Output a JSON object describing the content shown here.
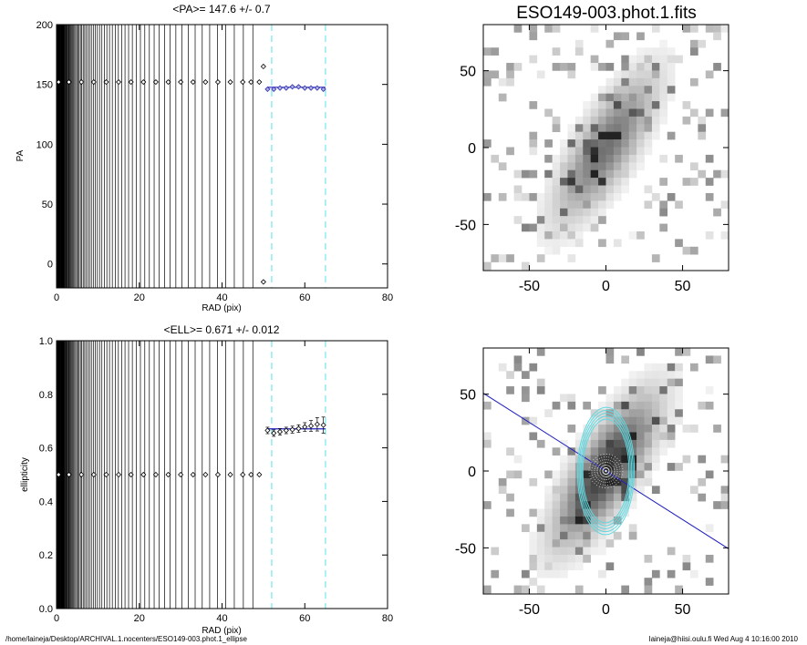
{
  "footer": {
    "path": "/home/laineja/Desktop/ARCHIVAL.1.nocenters/ESO149-003.phot.1_ellipse",
    "user_date": "laineja@hiisi.oulu.fi  Wed Aug  4 10:16:00 2010"
  },
  "colors": {
    "fit_line": "#2020c0",
    "fit_markers": "#3030b0",
    "range_lines": "#7fe8f0",
    "ellipses": "#60d8e0",
    "major_axis": "#2020c0"
  },
  "chart_data": [
    {
      "type": "scatter",
      "id": "pa_profile",
      "title": "<PA>= 147.6 +/-   0.7",
      "xlabel": "RAD (pix)",
      "ylabel": "PA",
      "xlim": [
        0,
        80
      ],
      "ylim": [
        -20,
        200
      ],
      "xticks": [
        0,
        20,
        40,
        60,
        80
      ],
      "yticks": [
        0,
        50,
        100,
        150,
        200
      ],
      "grid": false,
      "dense_vertical_lines_x_max": 49,
      "points": [
        {
          "x": 0.5,
          "y": 152
        },
        {
          "x": 3,
          "y": 152
        },
        {
          "x": 6,
          "y": 152
        },
        {
          "x": 9,
          "y": 152
        },
        {
          "x": 12,
          "y": 152
        },
        {
          "x": 15,
          "y": 152
        },
        {
          "x": 18,
          "y": 152
        },
        {
          "x": 21,
          "y": 152
        },
        {
          "x": 24,
          "y": 152
        },
        {
          "x": 27,
          "y": 152
        },
        {
          "x": 30,
          "y": 152
        },
        {
          "x": 33,
          "y": 152
        },
        {
          "x": 36,
          "y": 152
        },
        {
          "x": 39,
          "y": 152
        },
        {
          "x": 42,
          "y": 152
        },
        {
          "x": 45,
          "y": 152
        },
        {
          "x": 47,
          "y": 152
        },
        {
          "x": 49,
          "y": 152
        },
        {
          "x": 50,
          "y": 165
        },
        {
          "x": 50,
          "y": -15
        }
      ],
      "fit_points": [
        {
          "x": 51,
          "y": 146
        },
        {
          "x": 52.5,
          "y": 146
        },
        {
          "x": 54,
          "y": 147
        },
        {
          "x": 55.5,
          "y": 147
        },
        {
          "x": 57,
          "y": 148
        },
        {
          "x": 58.5,
          "y": 148
        },
        {
          "x": 60,
          "y": 147
        },
        {
          "x": 61.5,
          "y": 147
        },
        {
          "x": 63,
          "y": 147
        },
        {
          "x": 64.5,
          "y": 146
        }
      ],
      "fit_value": 147.6,
      "fit_range": [
        51,
        65
      ],
      "range_markers_x": [
        52,
        65
      ]
    },
    {
      "type": "scatter",
      "id": "ellipticity_profile",
      "title": "<ELL>= 0.671 +/-  0.012",
      "xlabel": "RAD (pix)",
      "ylabel": "ellipticity",
      "xlim": [
        0,
        80
      ],
      "ylim": [
        0,
        1
      ],
      "xticks": [
        0,
        20,
        40,
        60,
        80
      ],
      "yticks": [
        0.0,
        0.2,
        0.4,
        0.6,
        0.8,
        1.0
      ],
      "ytick_labels": [
        "0.0",
        "0.2",
        "0.4",
        "0.6",
        "0.8",
        "1.0"
      ],
      "grid": false,
      "dense_vertical_lines_x_max": 49,
      "points": [
        {
          "x": 0.5,
          "y": 0.5
        },
        {
          "x": 3,
          "y": 0.5
        },
        {
          "x": 6,
          "y": 0.5
        },
        {
          "x": 9,
          "y": 0.5
        },
        {
          "x": 12,
          "y": 0.5
        },
        {
          "x": 15,
          "y": 0.5
        },
        {
          "x": 18,
          "y": 0.5
        },
        {
          "x": 21,
          "y": 0.5
        },
        {
          "x": 24,
          "y": 0.5
        },
        {
          "x": 27,
          "y": 0.5
        },
        {
          "x": 30,
          "y": 0.5
        },
        {
          "x": 33,
          "y": 0.5
        },
        {
          "x": 36,
          "y": 0.5
        },
        {
          "x": 39,
          "y": 0.5
        },
        {
          "x": 42,
          "y": 0.5
        },
        {
          "x": 45,
          "y": 0.5
        },
        {
          "x": 47,
          "y": 0.5
        },
        {
          "x": 49,
          "y": 0.5
        }
      ],
      "fit_points": [
        {
          "x": 51,
          "y": 0.665,
          "err": 0.012
        },
        {
          "x": 52.5,
          "y": 0.655,
          "err": 0.012
        },
        {
          "x": 54,
          "y": 0.66,
          "err": 0.012
        },
        {
          "x": 55.5,
          "y": 0.665,
          "err": 0.012
        },
        {
          "x": 57,
          "y": 0.668,
          "err": 0.013
        },
        {
          "x": 58.5,
          "y": 0.672,
          "err": 0.014
        },
        {
          "x": 60,
          "y": 0.678,
          "err": 0.016
        },
        {
          "x": 61.5,
          "y": 0.682,
          "err": 0.02
        },
        {
          "x": 63,
          "y": 0.688,
          "err": 0.025
        },
        {
          "x": 64.5,
          "y": 0.685,
          "err": 0.03
        }
      ],
      "fit_value": 0.671,
      "fit_range": [
        51,
        65
      ],
      "range_markers_x": [
        52,
        65
      ]
    },
    {
      "type": "heatmap",
      "id": "galaxy_image",
      "title": "ESO149-003.phot.1.fits",
      "xlim": [
        -80,
        80
      ],
      "ylim": [
        -80,
        80
      ],
      "xticks": [
        -50,
        0,
        50
      ],
      "yticks": [
        -50,
        0,
        50
      ],
      "description_value_model": "elongated galaxy along position angle ~148 deg"
    },
    {
      "type": "heatmap",
      "id": "galaxy_ellipses",
      "title": "",
      "xlim": [
        -80,
        80
      ],
      "ylim": [
        -80,
        80
      ],
      "xticks": [
        -50,
        0,
        50
      ],
      "yticks": [
        -50,
        0,
        50
      ],
      "ellipse_semi_major_axes": [
        52,
        55,
        58,
        61,
        64
      ],
      "ellipticity": 0.671,
      "position_angle": 147.6
    }
  ]
}
